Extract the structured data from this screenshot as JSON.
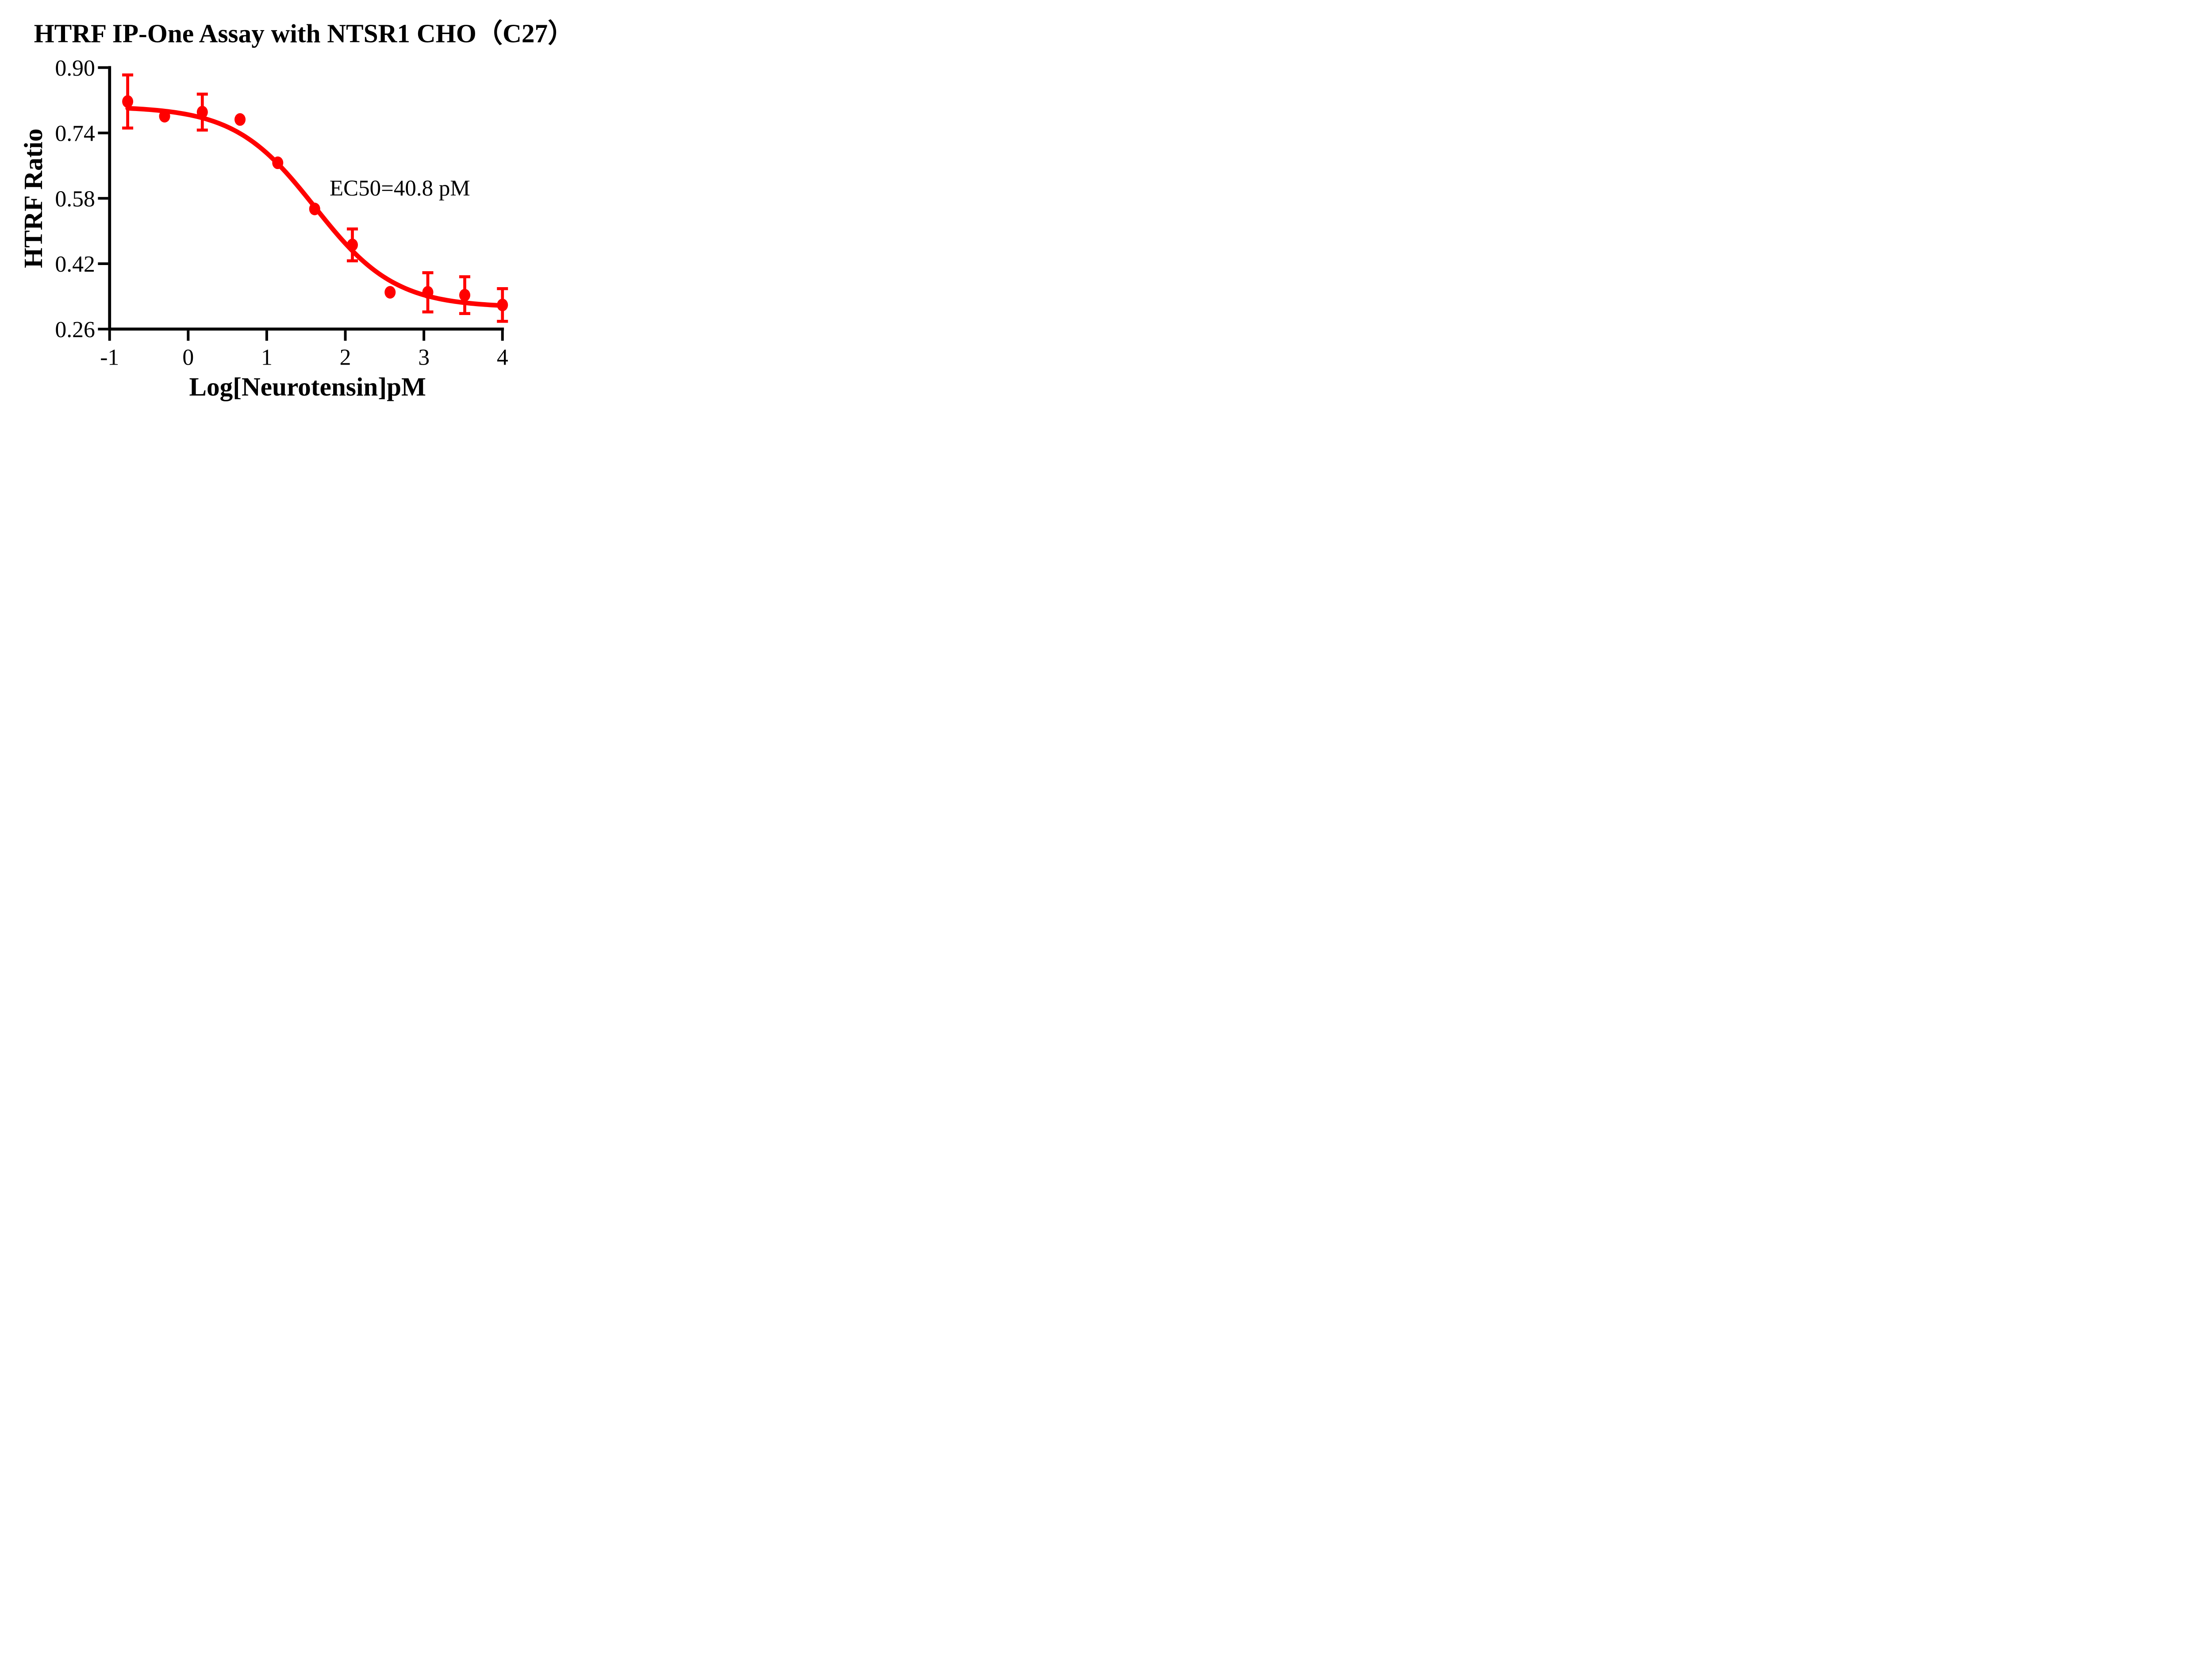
{
  "colors": {
    "series": "#FF0000",
    "axis": "#000000",
    "text": "#000000",
    "background": "#FFFFFF"
  },
  "chart_data": {
    "type": "scatter",
    "title": "HTRF IP-One Assay with NTSR1 CHO（C27）",
    "xlabel": "Log[Neurotensin]pM",
    "ylabel": "HTRF Ratio",
    "xlim": [
      -1,
      4
    ],
    "ylim": [
      0.26,
      0.9
    ],
    "x_ticks": [
      -1,
      0,
      1,
      2,
      3,
      4
    ],
    "x_tick_labels": [
      "-1",
      "0",
      "1",
      "2",
      "3",
      "4"
    ],
    "y_ticks": [
      0.9,
      0.74,
      0.58,
      0.42,
      0.26
    ],
    "y_tick_labels": [
      "0.90",
      "0.74",
      "0.58",
      "0.42",
      "0.26"
    ],
    "grid": false,
    "legend": null,
    "annotation": {
      "text": "EC50=40.8 pM",
      "x": 1.8,
      "y": 0.587
    },
    "ec50_pM": 40.8,
    "series": [
      {
        "name": "Neurotensin",
        "color": "#FF0000",
        "marker": "circle",
        "points": [
          {
            "x": -0.77,
            "y": 0.817,
            "err": 0.065
          },
          {
            "x": -0.3,
            "y": 0.781,
            "err": 0
          },
          {
            "x": 0.18,
            "y": 0.791,
            "err": 0.044
          },
          {
            "x": 0.66,
            "y": 0.773,
            "err": 0
          },
          {
            "x": 1.14,
            "y": 0.667,
            "err": 0
          },
          {
            "x": 1.61,
            "y": 0.554,
            "err": 0
          },
          {
            "x": 2.09,
            "y": 0.466,
            "err": 0.039
          },
          {
            "x": 2.57,
            "y": 0.35,
            "err": 0
          },
          {
            "x": 3.05,
            "y": 0.35,
            "err": 0.048
          },
          {
            "x": 3.52,
            "y": 0.343,
            "err": 0.045
          },
          {
            "x": 4.0,
            "y": 0.319,
            "err": 0.04
          }
        ],
        "fit": {
          "model": "4PL",
          "top": 0.805,
          "bottom": 0.313,
          "log_ec50": 1.611,
          "hill_slope": 0.85,
          "x_start": -0.77,
          "x_end": 4.01
        }
      }
    ]
  }
}
